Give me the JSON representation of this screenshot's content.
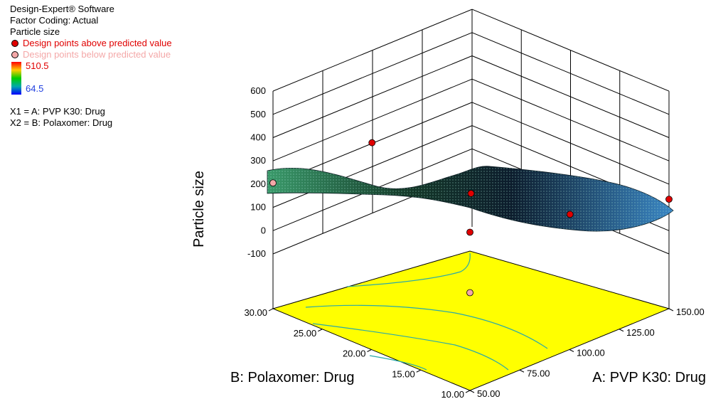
{
  "header": {
    "software": "Design-Expert® Software",
    "coding": "Factor Coding: Actual",
    "response": "Particle size"
  },
  "legend": {
    "above": "Design points above predicted value",
    "below": "Design points below predicted value",
    "above_color": "#e00000",
    "below_color": "#f4a8a8"
  },
  "colorbar": {
    "max": "510.5",
    "min": "64.5"
  },
  "factors": {
    "x1": "X1 = A: PVP K30: Drug",
    "x2": "X2 = B: Polaxomer: Drug"
  },
  "chart_data": {
    "type": "surface",
    "zlabel": "Particle size",
    "xlabel": "A: PVP K30: Drug",
    "ylabel": "B: Polaxomer: Drug",
    "x_ticks": [
      "50.00",
      "75.00",
      "100.00",
      "125.00",
      "150.00"
    ],
    "y_ticks": [
      "10.00",
      "15.00",
      "20.00",
      "25.00",
      "30.00"
    ],
    "z_ticks": [
      "-100",
      "0",
      "100",
      "200",
      "300",
      "400",
      "500",
      "600"
    ],
    "xlim": [
      50,
      150
    ],
    "ylim": [
      10,
      30
    ],
    "zlim": [
      -100,
      600
    ],
    "floor_color": "#ffff00",
    "design_points": [
      {
        "a": 50,
        "b": 30,
        "value": 205,
        "type": "below"
      },
      {
        "a": 50,
        "b": 10,
        "value": 345,
        "type": "above"
      },
      {
        "a": 50,
        "b": 10,
        "value": 85,
        "type": "below"
      },
      {
        "a": 150,
        "b": 10,
        "value": 135,
        "type": "above"
      },
      {
        "a": 75,
        "b": 25,
        "value": 378,
        "type": "above"
      },
      {
        "a": 100,
        "b": 20,
        "value": 160,
        "type": "above"
      },
      {
        "a": 125,
        "b": 15,
        "value": 70,
        "type": "above"
      }
    ]
  }
}
